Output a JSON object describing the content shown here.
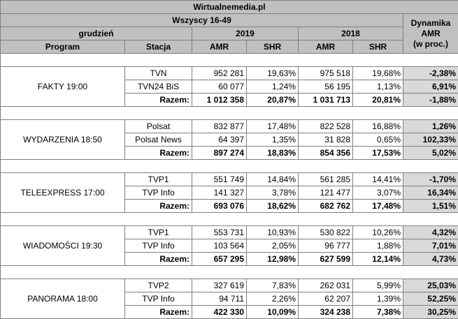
{
  "title": "Wirtualnemedia.pl",
  "subtitle": "Wszyscy 16-49",
  "month": "grudzień",
  "dyn_header": [
    "Dynamika",
    "AMR",
    "(w proc.)"
  ],
  "years": [
    "2019",
    "2018"
  ],
  "col_program": "Program",
  "col_station": "Stacja",
  "col_amr": "AMR",
  "col_shr": "SHR",
  "groups": [
    {
      "program": "FAKTY 19:00",
      "rows": [
        {
          "station": "TVN",
          "amr19": "952 281",
          "shr19": "19,63%",
          "amr18": "975 518",
          "shr18": "19,68%",
          "dyn": "-2,38%"
        },
        {
          "station": "TVN24 BiS",
          "amr19": "60 077",
          "shr19": "1,24%",
          "amr18": "56 195",
          "shr18": "1,13%",
          "dyn": "6,91%"
        },
        {
          "station": "Razem:",
          "amr19": "1 012 358",
          "shr19": "20,87%",
          "amr18": "1 031 713",
          "shr18": "20,81%",
          "dyn": "-1,88%"
        }
      ]
    },
    {
      "program": "WYDARZENIA 18:50",
      "rows": [
        {
          "station": "Polsat",
          "amr19": "832 877",
          "shr19": "17,48%",
          "amr18": "822 528",
          "shr18": "16,88%",
          "dyn": "1,26%"
        },
        {
          "station": "Polsat News",
          "amr19": "64 397",
          "shr19": "1,35%",
          "amr18": "31 828",
          "shr18": "0,65%",
          "dyn": "102,33%"
        },
        {
          "station": "Razem:",
          "amr19": "897 274",
          "shr19": "18,83%",
          "amr18": "854 356",
          "shr18": "17,53%",
          "dyn": "5,02%"
        }
      ]
    },
    {
      "program": "TELEEXPRESS 17:00",
      "rows": [
        {
          "station": "TVP1",
          "amr19": "551 749",
          "shr19": "14,84%",
          "amr18": "561 285",
          "shr18": "14,41%",
          "dyn": "-1,70%"
        },
        {
          "station": "TVP Info",
          "amr19": "141 327",
          "shr19": "3,78%",
          "amr18": "121 477",
          "shr18": "3,07%",
          "dyn": "16,34%"
        },
        {
          "station": "Razem:",
          "amr19": "693 076",
          "shr19": "18,62%",
          "amr18": "682 762",
          "shr18": "17,48%",
          "dyn": "1,51%"
        }
      ]
    },
    {
      "program": "WIADOMOŚCI 19:30",
      "rows": [
        {
          "station": "TVP1",
          "amr19": "553 731",
          "shr19": "10,93%",
          "amr18": "530 822",
          "shr18": "10,26%",
          "dyn": "4,32%"
        },
        {
          "station": "TVP Info",
          "amr19": "103 564",
          "shr19": "2,05%",
          "amr18": "96 777",
          "shr18": "1,88%",
          "dyn": "7,01%"
        },
        {
          "station": "Razem:",
          "amr19": "657 295",
          "shr19": "12,98%",
          "amr18": "627 599",
          "shr18": "12,14%",
          "dyn": "4,73%"
        }
      ]
    },
    {
      "program": "PANORAMA 18:00",
      "rows": [
        {
          "station": "TVP2",
          "amr19": "327 619",
          "shr19": "7,83%",
          "amr18": "262 031",
          "shr18": "5,99%",
          "dyn": "25,03%"
        },
        {
          "station": "TVP Info",
          "amr19": "94 711",
          "shr19": "2,26%",
          "amr18": "62 207",
          "shr18": "1,39%",
          "dyn": "52,25%"
        },
        {
          "station": "Razem:",
          "amr19": "422 330",
          "shr19": "10,09%",
          "amr18": "324 238",
          "shr18": "7,38%",
          "dyn": "30,25%"
        }
      ]
    }
  ]
}
